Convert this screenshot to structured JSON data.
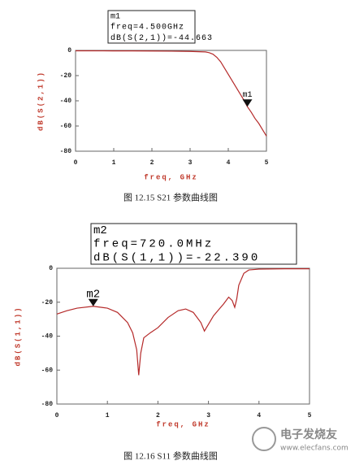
{
  "chart_data": [
    {
      "type": "line",
      "y_label": "dB(S(2,1))",
      "x_label": "freq, GHz",
      "caption": "图 12.15    S21 参数曲线图",
      "xlim": [
        0,
        5
      ],
      "xticks": [
        0,
        1,
        2,
        3,
        4,
        5
      ],
      "ylim": [
        -80,
        0
      ],
      "yticks": [
        -80,
        -60,
        -40,
        -20,
        0
      ],
      "series": [
        {
          "color": "#b52a2a",
          "x": [
            0,
            0.5,
            1,
            1.5,
            2,
            2.5,
            3,
            3.4,
            3.5,
            3.6,
            3.7,
            3.8,
            3.9,
            4.0,
            4.1,
            4.2,
            4.3,
            4.4,
            4.5,
            4.6,
            4.7,
            4.8,
            4.9,
            5
          ],
          "values": [
            -0.3,
            -0.3,
            -0.4,
            -0.4,
            -0.5,
            -0.6,
            -0.8,
            -1.2,
            -1.8,
            -3,
            -5.5,
            -9,
            -14,
            -19,
            -24,
            -29,
            -34,
            -39,
            -44.663,
            -49,
            -54,
            -58,
            -63,
            -68
          ]
        }
      ],
      "markers": [
        {
          "label": "m1",
          "x": 4.5,
          "y": -44.663,
          "readout": [
            "freq=4.500GHz",
            "dB(S(2,1))=-44.663"
          ]
        }
      ]
    },
    {
      "type": "line",
      "y_label": "dB(S(1,1))",
      "x_label": "freq, GHz",
      "caption": "图 12.16  S11 参数曲线图",
      "xlim": [
        0,
        5
      ],
      "xticks": [
        0,
        1,
        2,
        3,
        4,
        5
      ],
      "ylim": [
        -80,
        0
      ],
      "yticks": [
        -80,
        -60,
        -40,
        -20,
        0
      ],
      "series": [
        {
          "color": "#b52a2a",
          "x": [
            0,
            0.2,
            0.4,
            0.72,
            1.0,
            1.2,
            1.4,
            1.5,
            1.58,
            1.62,
            1.66,
            1.72,
            1.85,
            2.0,
            2.2,
            2.4,
            2.55,
            2.7,
            2.85,
            2.92,
            3.0,
            3.1,
            3.2,
            3.3,
            3.4,
            3.47,
            3.52,
            3.56,
            3.6,
            3.7,
            3.8,
            4.0,
            4.5,
            5
          ],
          "values": [
            -27,
            -25,
            -23.5,
            -22.39,
            -23.5,
            -26,
            -32,
            -38,
            -48,
            -63,
            -50,
            -41,
            -38,
            -35,
            -29,
            -25,
            -24,
            -26,
            -32,
            -37,
            -33,
            -28,
            -24.5,
            -21,
            -17,
            -19,
            -23,
            -18,
            -10,
            -3,
            -1,
            -0.5,
            -0.3,
            -0.3
          ]
        }
      ],
      "markers": [
        {
          "label": "m2",
          "x": 0.72,
          "y": -22.39,
          "readout": [
            "freq=720.0MHz",
            "dB(S(1,1))=-22.390"
          ]
        }
      ]
    }
  ],
  "watermark": {
    "brand": "电子发烧友",
    "url": "www.elecfans.com"
  }
}
